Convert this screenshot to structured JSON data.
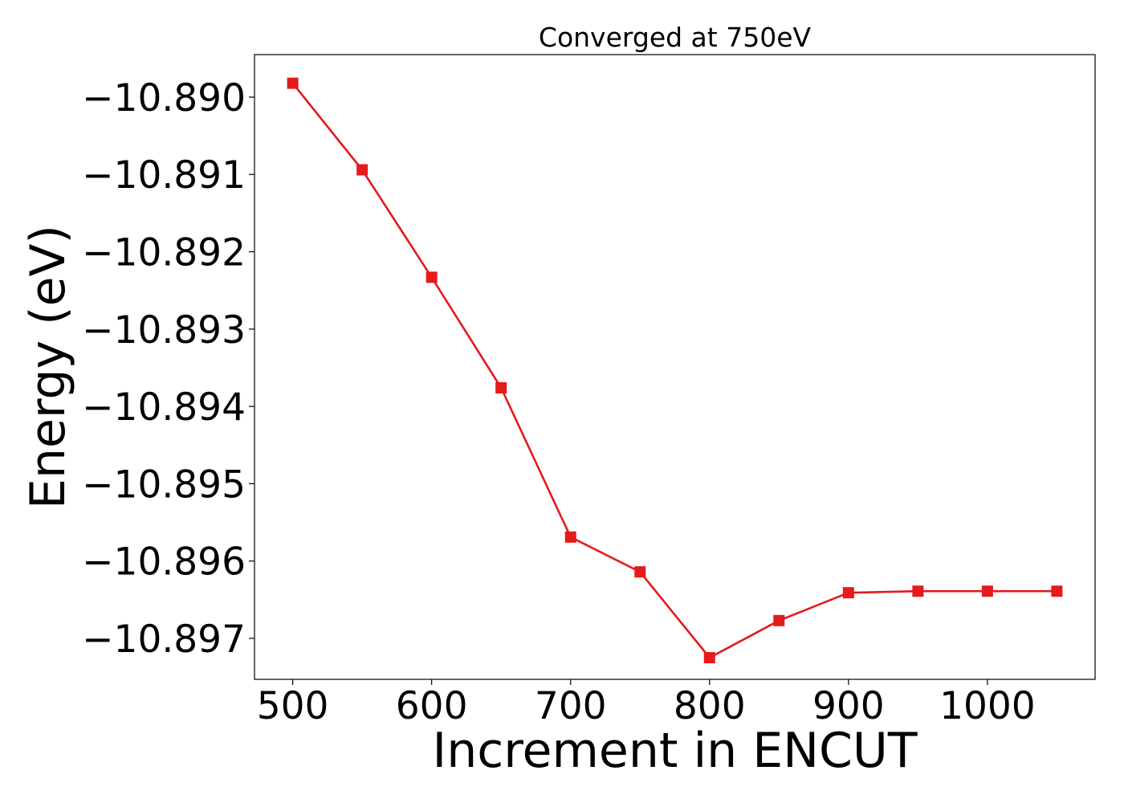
{
  "chart_data": {
    "type": "line",
    "title": "Converged at 750eV",
    "xlabel": "Increment in ENCUT",
    "ylabel": "Energy (eV)",
    "xlim": [
      472.5,
      1077.5
    ],
    "ylim": [
      -10.89753,
      -10.88945
    ],
    "xticks": [
      500,
      600,
      700,
      800,
      900,
      1000
    ],
    "xtick_labels": [
      "500",
      "600",
      "700",
      "800",
      "900",
      "1000"
    ],
    "yticks": [
      -10.89,
      -10.891,
      -10.892,
      -10.893,
      -10.894,
      -10.895,
      -10.896,
      -10.897
    ],
    "ytick_labels": [
      "−10.890",
      "−10.891",
      "−10.892",
      "−10.893",
      "−10.894",
      "−10.895",
      "−10.896",
      "−10.897"
    ],
    "grid": false,
    "legend": false,
    "x": [
      500,
      550,
      600,
      650,
      700,
      750,
      800,
      850,
      900,
      950,
      1000,
      1050
    ],
    "series": [
      {
        "color": "#e41a1c",
        "marker": "square",
        "values": [
          -10.88982,
          -10.89094,
          -10.89233,
          -10.89376,
          -10.89569,
          -10.89614,
          -10.89725,
          -10.89677,
          -10.89641,
          -10.89639,
          -10.89639,
          -10.89639
        ]
      }
    ]
  }
}
